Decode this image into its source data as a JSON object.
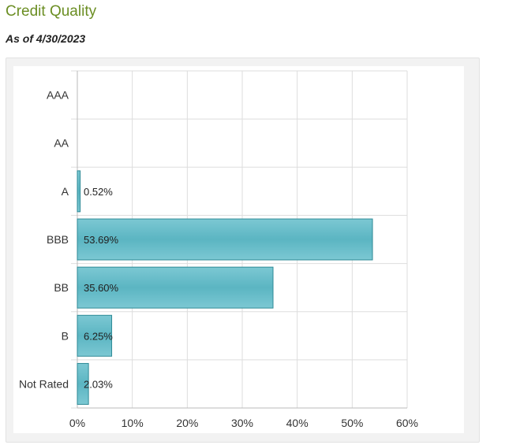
{
  "header": {
    "title": "Credit Quality",
    "as_of": "As of 4/30/2023"
  },
  "chart_data": {
    "type": "bar",
    "orientation": "horizontal",
    "categories": [
      "AAA",
      "AA",
      "A",
      "BBB",
      "BB",
      "B",
      "Not Rated"
    ],
    "values": [
      0,
      0,
      0.52,
      53.69,
      35.6,
      6.25,
      2.03
    ],
    "data_labels": [
      "",
      "",
      "0.52%",
      "53.69%",
      "35.60%",
      "6.25%",
      "2.03%"
    ],
    "x_ticks": [
      "0%",
      "10%",
      "20%",
      "30%",
      "40%",
      "50%",
      "60%"
    ],
    "xlim": [
      0,
      60
    ],
    "grid": true,
    "bar_color": "#5bb5c2",
    "bar_color_light": "#7cc8d3",
    "bar_edge_color": "#2e8a96"
  }
}
